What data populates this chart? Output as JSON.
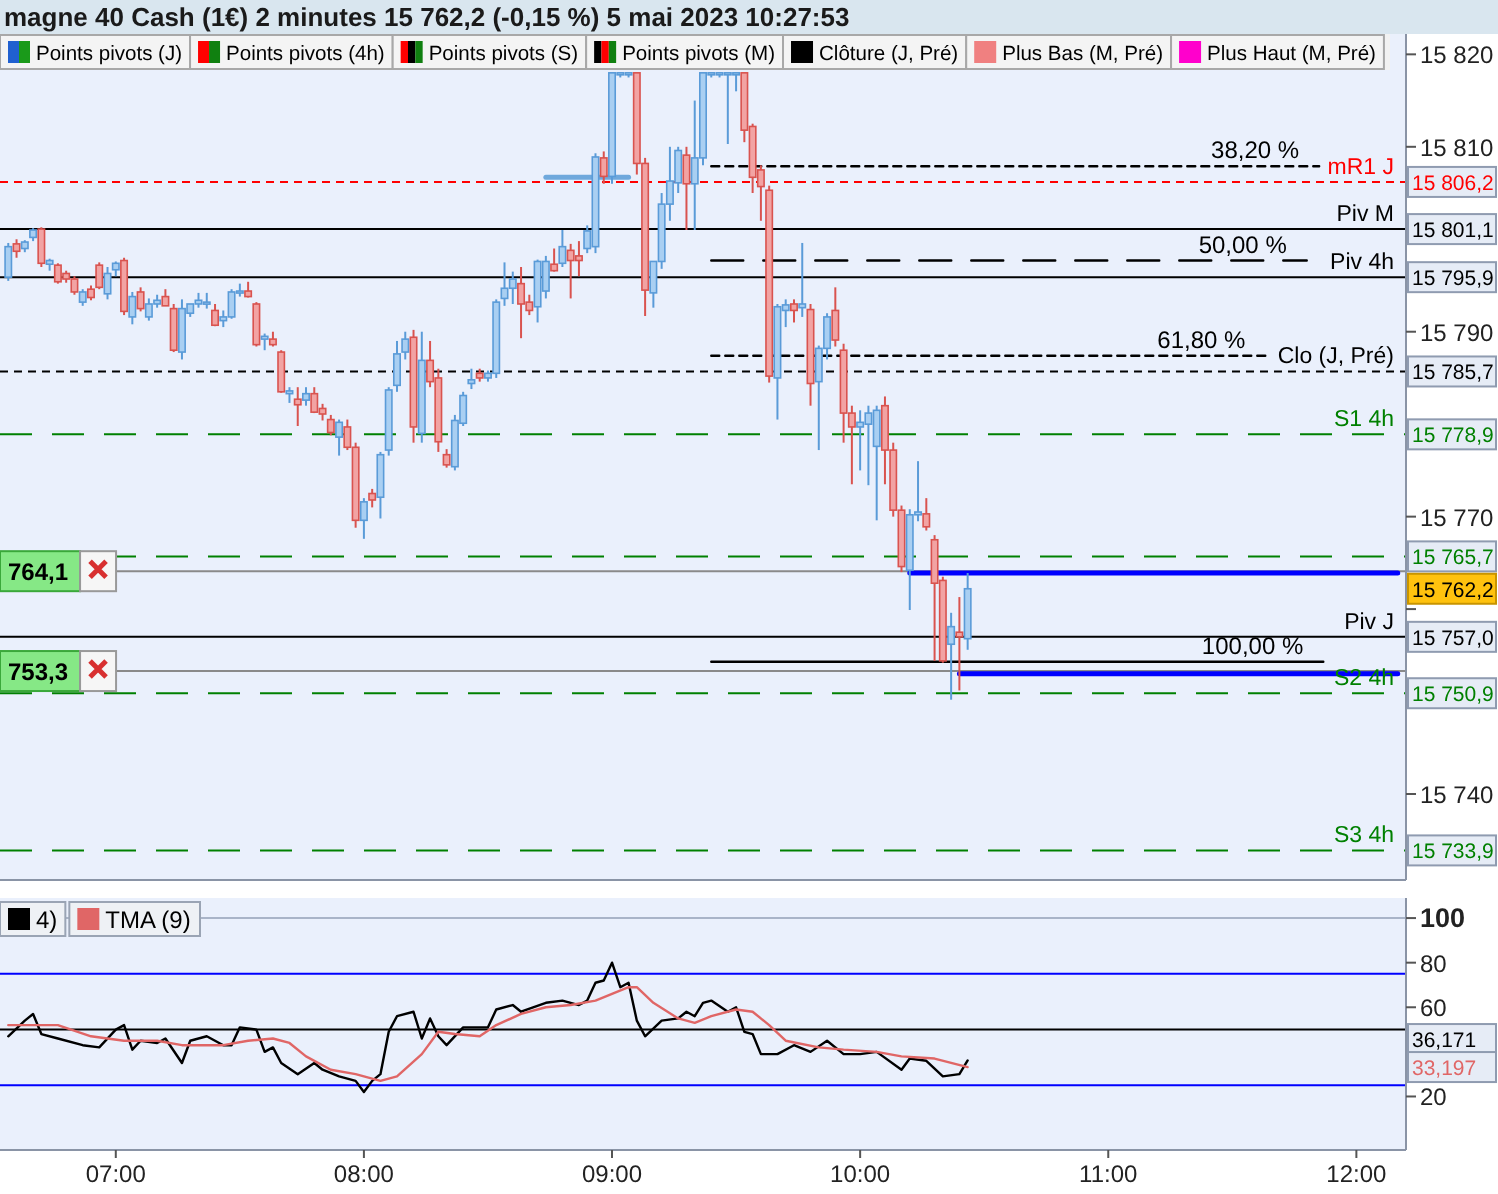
{
  "chart_data": [
    {
      "type": "candlestick",
      "title": "magne 40 Cash (1€) 2 minutes 15 762,2 (-0,15 %) 5 mai 2023 10:27:53",
      "annotations": [
        "Points pivots (J)",
        "Points pivots (4h)",
        "Points pivots (S)",
        "Points pivots (M)",
        "Clôture (J, Pré)",
        "Plus Bas (M, Pré)",
        "Plus Haut (M, Pré)",
        {
          "text": "764,1",
          "x": "2023-05-05T06:32",
          "y": 15764.1
        },
        {
          "text": "753,3",
          "x": "2023-05-05T06:32",
          "y": 15753.3
        },
        {
          "text": "15 806,2",
          "y": 15806.2
        },
        {
          "text": "15 801,1",
          "y": 15801.1
        },
        {
          "text": "15 795,9",
          "y": 15795.9
        },
        {
          "text": "15 785,7",
          "y": 15785.7
        },
        {
          "text": "15 778,9",
          "y": 15778.9
        },
        {
          "text": "15 765,7",
          "y": 15765.7
        },
        {
          "text": "15 762,2",
          "y": 15762.2
        },
        {
          "text": "15 757,0",
          "y": 15757.0
        },
        {
          "text": "15 750,9",
          "y": 15750.9
        },
        {
          "text": "15 733,9",
          "y": 15733.9
        }
      ],
      "x": [
        "2023-05-05T06:34",
        "2023-05-05T06:36",
        "2023-05-05T06:38",
        "2023-05-05T06:40",
        "2023-05-05T06:42",
        "2023-05-05T06:44",
        "2023-05-05T06:46",
        "2023-05-05T06:48",
        "2023-05-05T06:50",
        "2023-05-05T06:52",
        "2023-05-05T06:54",
        "2023-05-05T06:56",
        "2023-05-05T06:58",
        "2023-05-05T07:00",
        "2023-05-05T07:02",
        "2023-05-05T07:04",
        "2023-05-05T07:06",
        "2023-05-05T07:08",
        "2023-05-05T07:10",
        "2023-05-05T07:12",
        "2023-05-05T07:14",
        "2023-05-05T07:16",
        "2023-05-05T07:18",
        "2023-05-05T07:20",
        "2023-05-05T07:22",
        "2023-05-05T07:24",
        "2023-05-05T07:26",
        "2023-05-05T07:28",
        "2023-05-05T07:30",
        "2023-05-05T07:32",
        "2023-05-05T07:34",
        "2023-05-05T07:36",
        "2023-05-05T07:38",
        "2023-05-05T07:40",
        "2023-05-05T07:42",
        "2023-05-05T07:44",
        "2023-05-05T07:46",
        "2023-05-05T07:48",
        "2023-05-05T07:50",
        "2023-05-05T07:52",
        "2023-05-05T07:54",
        "2023-05-05T07:56",
        "2023-05-05T07:58",
        "2023-05-05T08:00",
        "2023-05-05T08:02",
        "2023-05-05T08:04",
        "2023-05-05T08:06",
        "2023-05-05T08:08",
        "2023-05-05T08:10",
        "2023-05-05T08:12",
        "2023-05-05T08:14",
        "2023-05-05T08:16",
        "2023-05-05T08:18",
        "2023-05-05T08:20",
        "2023-05-05T08:22",
        "2023-05-05T08:24",
        "2023-05-05T08:26",
        "2023-05-05T08:28",
        "2023-05-05T08:30",
        "2023-05-05T08:32",
        "2023-05-05T08:34",
        "2023-05-05T08:36",
        "2023-05-05T08:38",
        "2023-05-05T08:40",
        "2023-05-05T08:42",
        "2023-05-05T08:44",
        "2023-05-05T08:46",
        "2023-05-05T08:48",
        "2023-05-05T08:50",
        "2023-05-05T08:52",
        "2023-05-05T08:54",
        "2023-05-05T08:56",
        "2023-05-05T08:58",
        "2023-05-05T09:00",
        "2023-05-05T09:02",
        "2023-05-05T09:04",
        "2023-05-05T09:06",
        "2023-05-05T09:08",
        "2023-05-05T09:10",
        "2023-05-05T09:12",
        "2023-05-05T09:14",
        "2023-05-05T09:16",
        "2023-05-05T09:18",
        "2023-05-05T09:20",
        "2023-05-05T09:22",
        "2023-05-05T09:24",
        "2023-05-05T09:26",
        "2023-05-05T09:28",
        "2023-05-05T09:30",
        "2023-05-05T09:32",
        "2023-05-05T09:34",
        "2023-05-05T09:36",
        "2023-05-05T09:38",
        "2023-05-05T09:40",
        "2023-05-05T09:42",
        "2023-05-05T09:44",
        "2023-05-05T09:46",
        "2023-05-05T09:48",
        "2023-05-05T09:50",
        "2023-05-05T09:52",
        "2023-05-05T09:54",
        "2023-05-05T09:56",
        "2023-05-05T09:58",
        "2023-05-05T10:00",
        "2023-05-05T10:02",
        "2023-05-05T10:04",
        "2023-05-05T10:06",
        "2023-05-05T10:08",
        "2023-05-05T10:10",
        "2023-05-05T10:12",
        "2023-05-05T10:14",
        "2023-05-05T10:16",
        "2023-05-05T10:18",
        "2023-05-05T10:20",
        "2023-05-05T10:22",
        "2023-05-05T10:24",
        "2023-05-05T10:26"
      ],
      "ohlc": [
        [
          15795.9,
          15799.6,
          15795.5,
          15799.2
        ],
        [
          15799.5,
          15800.0,
          15798.0,
          15798.7
        ],
        [
          15799.0,
          15799.9,
          15798.6,
          15799.7
        ],
        [
          15800.2,
          15801.2,
          15799.8,
          15801.0
        ],
        [
          15801.1,
          15801.3,
          15797.0,
          15797.4
        ],
        [
          15797.3,
          15797.9,
          15796.6,
          15797.7
        ],
        [
          15797.2,
          15797.4,
          15795.2,
          15795.4
        ],
        [
          15796.3,
          15796.6,
          15795.3,
          15795.7
        ],
        [
          15795.7,
          15796.0,
          15794.0,
          15794.3
        ],
        [
          15793.2,
          15794.6,
          15792.8,
          15794.3
        ],
        [
          15794.6,
          15795.0,
          15793.4,
          15793.7
        ],
        [
          15797.2,
          15797.5,
          15794.6,
          15794.8
        ],
        [
          15794.1,
          15797.0,
          15793.5,
          15796.3
        ],
        [
          15796.7,
          15797.6,
          15796.0,
          15797.4
        ],
        [
          15797.7,
          15798.0,
          15791.8,
          15792.2
        ],
        [
          15791.6,
          15794.3,
          15790.8,
          15793.8
        ],
        [
          15794.3,
          15794.8,
          15792.2,
          15792.5
        ],
        [
          15791.6,
          15793.6,
          15791.2,
          15793.0
        ],
        [
          15793.0,
          15794.0,
          15792.6,
          15793.4
        ],
        [
          15793.8,
          15794.6,
          15792.8,
          15792.8
        ],
        [
          15792.5,
          15793.0,
          15787.8,
          15788.0
        ],
        [
          15787.8,
          15793.5,
          15787.0,
          15792.5
        ],
        [
          15792.0,
          15793.0,
          15791.6,
          15793.0
        ],
        [
          15793.0,
          15794.2,
          15792.6,
          15793.4
        ],
        [
          15793.0,
          15794.2,
          15792.5,
          15793.2
        ],
        [
          15792.3,
          15793.0,
          15790.6,
          15790.7
        ],
        [
          15791.2,
          15792.3,
          15790.5,
          15791.6
        ],
        [
          15791.6,
          15794.6,
          15791.4,
          15794.3
        ],
        [
          15794.2,
          15795.2,
          15793.8,
          15794.4
        ],
        [
          15794.4,
          15795.4,
          15793.7,
          15793.8
        ],
        [
          15793.0,
          15793.2,
          15788.4,
          15788.6
        ],
        [
          15789.2,
          15789.8,
          15788.0,
          15789.5
        ],
        [
          15789.2,
          15790.0,
          15788.4,
          15788.6
        ],
        [
          15787.8,
          15788.0,
          15783.4,
          15783.5
        ],
        [
          15783.3,
          15784.0,
          15782.3,
          15783.6
        ],
        [
          15782.7,
          15784.0,
          15779.8,
          15782.1
        ],
        [
          15782.6,
          15784.0,
          15782.0,
          15783.3
        ],
        [
          15783.3,
          15784.0,
          15781.2,
          15781.3
        ],
        [
          15781.7,
          15782.2,
          15780.4,
          15781.1
        ],
        [
          15780.5,
          15781.0,
          15778.8,
          15779.1
        ],
        [
          15778.6,
          15780.5,
          15776.6,
          15780.2
        ],
        [
          15779.7,
          15780.5,
          15777.2,
          15777.5
        ],
        [
          15777.5,
          15778.0,
          15768.8,
          15769.6
        ],
        [
          15769.6,
          15772.0,
          15767.6,
          15771.6
        ],
        [
          15772.5,
          15773.0,
          15771.0,
          15771.8
        ],
        [
          15772.1,
          15777.0,
          15769.8,
          15776.7
        ],
        [
          15777.2,
          15784.0,
          15776.6,
          15783.7
        ],
        [
          15784.2,
          15789.0,
          15783.5,
          15787.6
        ],
        [
          15787.8,
          15790.0,
          15787.0,
          15789.2
        ],
        [
          15789.4,
          15790.2,
          15778.0,
          15779.7
        ],
        [
          15779.0,
          15790.0,
          15778.0,
          15786.9
        ],
        [
          15786.9,
          15789.0,
          15784.0,
          15784.6
        ],
        [
          15785.0,
          15786.0,
          15777.0,
          15778.1
        ],
        [
          15776.7,
          15777.3,
          15775.3,
          15775.6
        ],
        [
          15775.4,
          15781.0,
          15775.0,
          15780.4
        ],
        [
          15780.1,
          15783.5,
          15779.8,
          15783.1
        ],
        [
          15784.4,
          15786.0,
          15783.8,
          15784.8
        ],
        [
          15785.5,
          15786.0,
          15784.6,
          15785.0
        ],
        [
          15785.0,
          15785.8,
          15784.6,
          15785.5
        ],
        [
          15785.5,
          15793.5,
          15785.0,
          15793.2
        ],
        [
          15793.6,
          15797.5,
          15792.8,
          15794.7
        ],
        [
          15794.7,
          15796.5,
          15793.0,
          15795.7
        ],
        [
          15795.2,
          15797.0,
          15789.3,
          15793.0
        ],
        [
          15793.2,
          15794.0,
          15791.8,
          15792.3
        ],
        [
          15792.7,
          15797.8,
          15791.0,
          15797.6
        ],
        [
          15794.4,
          15798.2,
          15793.6,
          15797.6
        ],
        [
          15797.3,
          15799.0,
          15796.5,
          15796.6
        ],
        [
          15797.4,
          15801.0,
          15797.0,
          15799.2
        ],
        [
          15798.8,
          15799.5,
          15793.6,
          15797.7
        ],
        [
          15798.2,
          15799.8,
          15796.0,
          15797.7
        ],
        [
          15799.0,
          15801.5,
          15798.5,
          15800.9
        ],
        [
          15799.2,
          15809.3,
          15798.5,
          15808.9
        ],
        [
          15808.8,
          15809.5,
          15806.0,
          15806.8
        ],
        [
          15806.8,
          15818.0,
          15806.0,
          15818.0
        ],
        [
          15818.0,
          15818.0,
          15817.5,
          15818.0
        ],
        [
          15818.0,
          15818.0,
          15817.5,
          15818.0
        ],
        [
          15818.0,
          15818.0,
          15807.0,
          15808.2
        ],
        [
          15808.2,
          15808.8,
          15791.7,
          15794.5
        ],
        [
          15794.2,
          15797.6,
          15792.6,
          15797.6
        ],
        [
          15797.6,
          15805.0,
          15796.8,
          15803.8
        ],
        [
          15803.8,
          15810.0,
          15802.0,
          15806.3
        ],
        [
          15806.1,
          15810.0,
          15805.0,
          15809.6
        ],
        [
          15809.1,
          15810.0,
          15801.0,
          15806.0
        ],
        [
          15806.0,
          15815.0,
          15801.0,
          15808.8
        ],
        [
          15808.8,
          15818.0,
          15808.0,
          15818.0
        ],
        [
          15818.0,
          15818.0,
          15817.5,
          15818.0
        ],
        [
          15818.0,
          15818.0,
          15817.5,
          15818.0
        ],
        [
          15818.0,
          15818.0,
          15810.3,
          15818.0
        ],
        [
          15818.0,
          15818.0,
          15816.0,
          15818.0
        ],
        [
          15818.0,
          15818.0,
          15810.5,
          15811.8
        ],
        [
          15812.2,
          15812.5,
          15805.0,
          15806.7
        ],
        [
          15807.5,
          15808.0,
          15802.0,
          15805.7
        ],
        [
          15805.3,
          15805.8,
          15784.5,
          15785.2
        ],
        [
          15785.0,
          15793.0,
          15780.5,
          15792.7
        ],
        [
          15792.3,
          15793.5,
          15790.5,
          15792.9
        ],
        [
          15793.0,
          15793.5,
          15791.0,
          15792.3
        ],
        [
          15792.6,
          15799.6,
          15791.6,
          15793.0
        ],
        [
          15792.4,
          15793.0,
          15782.0,
          15784.4
        ],
        [
          15784.6,
          15788.5,
          15777.2,
          15788.2
        ],
        [
          15788.2,
          15792.0,
          15787.0,
          15791.6
        ],
        [
          15792.3,
          15794.8,
          15788.4,
          15789.1
        ],
        [
          15788.0,
          15788.7,
          15778.0,
          15781.2
        ],
        [
          15781.2,
          15782.0,
          15773.5,
          15779.7
        ],
        [
          15779.7,
          15781.5,
          15775.0,
          15780.2
        ],
        [
          15780.0,
          15782.0,
          15773.4,
          15781.2
        ],
        [
          15777.6,
          15782.0,
          15769.6,
          15781.5
        ],
        [
          15782.0,
          15783.0,
          15773.5,
          15777.2
        ],
        [
          15777.2,
          15778.0,
          15770.0,
          15770.7
        ],
        [
          15770.7,
          15771.2,
          15764.0,
          15764.6
        ],
        [
          15764.2,
          15770.8,
          15759.9,
          15770.2
        ],
        [
          15770.2,
          15776.0,
          15769.5,
          15770.5
        ],
        [
          15770.3,
          15772.0,
          15768.5,
          15768.9
        ],
        [
          15767.5,
          15768.0,
          15754.4,
          15762.8
        ],
        [
          15763.1,
          15763.5,
          15754.2,
          15754.4
        ],
        [
          15756.2,
          15759.6,
          15750.2,
          15758.1
        ],
        [
          15757.5,
          15761.3,
          15751.2,
          15757.0
        ],
        [
          15756.8,
          15763.9,
          15755.6,
          15762.2
        ]
      ],
      "series": [
        {
          "type": "line",
          "name": "38,20 %",
          "color": "#000000",
          "line_style": "dotted",
          "x": [
            "2023-05-05T09:24",
            "2023-05-05T11:51"
          ],
          "values": [
            15807.9,
            15807.9
          ]
        },
        {
          "type": "line",
          "name": "50,00 %",
          "color": "#000000",
          "line_style": "dashed",
          "x": [
            "2023-05-05T09:24",
            "2023-05-05T11:48"
          ],
          "values": [
            15797.7,
            15797.7
          ]
        },
        {
          "type": "line",
          "name": "61,80 %",
          "color": "#000000",
          "line_style": "dotted",
          "x": [
            "2023-05-05T09:24",
            "2023-05-05T11:38"
          ],
          "values": [
            15787.4,
            15787.4
          ]
        },
        {
          "type": "line",
          "name": "100,00 %",
          "color": "#000000",
          "line_style": "solid",
          "x": [
            "2023-05-05T09:24",
            "2023-05-05T11:52"
          ],
          "values": [
            15754.3,
            15754.3
          ]
        },
        {
          "type": "line",
          "color": "#0000ff",
          "line_style": "solid",
          "x": [
            "2023-05-05T10:12",
            "2023-05-05T12:10"
          ],
          "values": [
            15763.9,
            15763.9
          ]
        },
        {
          "type": "line",
          "color": "#0000ff",
          "line_style": "solid",
          "x": [
            "2023-05-05T10:24",
            "2023-05-05T12:10"
          ],
          "values": [
            15753.0,
            15753.0
          ]
        },
        {
          "type": "line",
          "color": "#6fa8dc",
          "line_style": "solid",
          "x": [
            "2023-05-05T08:44",
            "2023-05-05T09:04"
          ],
          "values": [
            15806.7,
            15806.7
          ]
        }
      ],
      "ref_lines": [
        {
          "axis": "y",
          "value": 15806.2,
          "label": "mR1 J",
          "color": "#ff0000",
          "line_style": "dotted"
        },
        {
          "axis": "y",
          "value": 15801.1,
          "label": "Piv M",
          "color": "#000000",
          "line_style": "solid"
        },
        {
          "axis": "y",
          "value": 15795.9,
          "label": "Piv 4h",
          "color": "#000000",
          "line_style": "solid"
        },
        {
          "axis": "y",
          "value": 15785.7,
          "label": "Clo (J, Pré)",
          "color": "#000000",
          "line_style": "dotted"
        },
        {
          "axis": "y",
          "value": 15778.9,
          "label": "S1 4h",
          "color": "#008000",
          "line_style": "dashed"
        },
        {
          "axis": "y",
          "value": 15765.7,
          "label": null,
          "color": "#008000",
          "line_style": "dashed"
        },
        {
          "axis": "y",
          "value": 15757.0,
          "label": "Piv J",
          "color": "#000000",
          "line_style": "solid"
        },
        {
          "axis": "y",
          "value": 15750.9,
          "label": "S2 4h",
          "color": "#008000",
          "line_style": "dashed"
        },
        {
          "axis": "y",
          "value": 15733.9,
          "label": "S3 4h",
          "color": "#008000",
          "line_style": "dashed"
        },
        {
          "axis": "y",
          "value": 15764.1,
          "color": "#8a8a8a",
          "line_style": "solid"
        },
        {
          "axis": "y",
          "value": 15753.3,
          "color": "#8a8a8a",
          "line_style": "solid"
        }
      ],
      "xlim": [
        "2023-05-05T06:32",
        "2023-05-05T12:12"
      ],
      "ylim": [
        15730.7,
        15822.2
      ],
      "yticks": [
        {
          "value": 15740,
          "label": "15 740"
        },
        {
          "value": 15760,
          "label": null
        },
        {
          "value": 15770,
          "label": "15 770"
        },
        {
          "value": 15790,
          "label": "15 790"
        },
        {
          "value": 15810,
          "label": "15 810"
        },
        {
          "value": 15820,
          "label": "15 820"
        }
      ],
      "tick_labels": "y"
    },
    {
      "type": "line",
      "legend": "top left",
      "series": [
        {
          "name": "4)",
          "color": "#000000",
          "x": [
            "2023-05-05T06:34",
            "2023-05-05T06:38",
            "2023-05-05T06:40",
            "2023-05-05T06:42",
            "2023-05-05T06:46",
            "2023-05-05T06:52",
            "2023-05-05T06:56",
            "2023-05-05T07:00",
            "2023-05-05T07:02",
            "2023-05-05T07:04",
            "2023-05-05T07:06",
            "2023-05-05T07:10",
            "2023-05-05T07:12",
            "2023-05-05T07:16",
            "2023-05-05T07:18",
            "2023-05-05T07:22",
            "2023-05-05T07:26",
            "2023-05-05T07:28",
            "2023-05-05T07:30",
            "2023-05-05T07:34",
            "2023-05-05T07:36",
            "2023-05-05T07:38",
            "2023-05-05T07:40",
            "2023-05-05T07:44",
            "2023-05-05T07:48",
            "2023-05-05T07:50",
            "2023-05-05T07:54",
            "2023-05-05T07:58",
            "2023-05-05T08:00",
            "2023-05-05T08:02",
            "2023-05-05T08:04",
            "2023-05-05T08:06",
            "2023-05-05T08:08",
            "2023-05-05T08:12",
            "2023-05-05T08:14",
            "2023-05-05T08:16",
            "2023-05-05T08:18",
            "2023-05-05T08:20",
            "2023-05-05T08:24",
            "2023-05-05T08:30",
            "2023-05-05T08:32",
            "2023-05-05T08:36",
            "2023-05-05T08:38",
            "2023-05-05T08:44",
            "2023-05-05T08:48",
            "2023-05-05T08:52",
            "2023-05-05T08:54",
            "2023-05-05T08:56",
            "2023-05-05T08:58",
            "2023-05-05T09:00",
            "2023-05-05T09:02",
            "2023-05-05T09:04",
            "2023-05-05T09:06",
            "2023-05-05T09:08",
            "2023-05-05T09:12",
            "2023-05-05T09:16",
            "2023-05-05T09:18",
            "2023-05-05T09:20",
            "2023-05-05T09:22",
            "2023-05-05T09:24",
            "2023-05-05T09:28",
            "2023-05-05T09:30",
            "2023-05-05T09:32",
            "2023-05-05T09:34",
            "2023-05-05T09:36",
            "2023-05-05T09:40",
            "2023-05-05T09:44",
            "2023-05-05T09:48",
            "2023-05-05T09:52",
            "2023-05-05T09:56",
            "2023-05-05T10:00",
            "2023-05-05T10:04",
            "2023-05-05T10:10",
            "2023-05-05T10:12",
            "2023-05-05T10:16",
            "2023-05-05T10:20",
            "2023-05-05T10:24",
            "2023-05-05T10:26"
          ],
          "values": [
            47,
            54,
            57,
            48,
            46,
            43,
            42,
            50,
            52,
            41,
            45,
            44,
            46,
            35,
            45,
            47,
            43,
            43,
            51,
            50,
            40,
            42,
            35,
            30,
            35,
            32,
            29,
            27,
            22,
            27,
            30,
            49,
            56,
            58,
            46,
            55,
            47,
            43,
            51,
            51,
            59,
            61,
            58,
            62,
            63,
            61,
            63,
            71,
            72,
            80,
            69,
            71,
            54,
            47,
            54,
            55,
            58,
            56,
            62,
            63,
            58,
            60,
            49,
            48,
            39,
            39,
            43,
            40,
            45,
            39,
            39,
            40,
            32,
            37,
            36,
            29,
            30,
            36.171
          ]
        },
        {
          "name": "TMA (9)",
          "color": "#e06666",
          "x": [
            "2023-05-05T06:34",
            "2023-05-05T06:40",
            "2023-05-05T06:46",
            "2023-05-05T06:54",
            "2023-05-05T07:02",
            "2023-05-05T07:10",
            "2023-05-05T07:16",
            "2023-05-05T07:26",
            "2023-05-05T07:32",
            "2023-05-05T07:38",
            "2023-05-05T07:42",
            "2023-05-05T07:46",
            "2023-05-05T07:52",
            "2023-05-05T07:58",
            "2023-05-05T08:04",
            "2023-05-05T08:08",
            "2023-05-05T08:14",
            "2023-05-05T08:18",
            "2023-05-05T08:22",
            "2023-05-05T08:28",
            "2023-05-05T08:32",
            "2023-05-05T08:38",
            "2023-05-05T08:44",
            "2023-05-05T08:50",
            "2023-05-05T08:56",
            "2023-05-05T09:00",
            "2023-05-05T09:04",
            "2023-05-05T09:06",
            "2023-05-05T09:10",
            "2023-05-05T09:16",
            "2023-05-05T09:20",
            "2023-05-05T09:24",
            "2023-05-05T09:30",
            "2023-05-05T09:34",
            "2023-05-05T09:38",
            "2023-05-05T09:42",
            "2023-05-05T09:50",
            "2023-05-05T09:56",
            "2023-05-05T10:04",
            "2023-05-05T10:10",
            "2023-05-05T10:18",
            "2023-05-05T10:26"
          ],
          "values": [
            52,
            52,
            52,
            47,
            45,
            45,
            43,
            43,
            45,
            46,
            44,
            38,
            32,
            30,
            27,
            29,
            39,
            49,
            48,
            47,
            52,
            57,
            60,
            61,
            63,
            66,
            69,
            69,
            62,
            55,
            53,
            56,
            59,
            58,
            52,
            45,
            42,
            41,
            40,
            38,
            37,
            33.197
          ]
        }
      ],
      "annotations": [
        "36,171",
        "33,197"
      ],
      "ref_lines": [
        {
          "axis": "y",
          "value": 100,
          "color": "#a9b4c8",
          "line_style": "solid"
        },
        {
          "axis": "y",
          "value": 75,
          "color": "#0000ff",
          "line_style": "solid"
        },
        {
          "axis": "y",
          "value": 50,
          "color": "#000000",
          "line_style": "solid"
        },
        {
          "axis": "y",
          "value": 25,
          "color": "#0000ff",
          "line_style": "solid"
        }
      ],
      "xlim": [
        "2023-05-05T06:32",
        "2023-05-05T12:12"
      ],
      "xticks": [
        {
          "value": "2023-05-05T07:00",
          "label": "07:00"
        },
        {
          "value": "2023-05-05T08:00",
          "label": "08:00"
        },
        {
          "value": "2023-05-05T09:00",
          "label": "09:00"
        },
        {
          "value": "2023-05-05T10:00",
          "label": "10:00"
        },
        {
          "value": "2023-05-05T11:00",
          "label": "11:00"
        },
        {
          "value": "2023-05-05T12:00",
          "label": "12:00"
        }
      ],
      "ylim": [
        -4,
        109
      ],
      "yticks": [
        20,
        60,
        80,
        100
      ]
    }
  ]
}
